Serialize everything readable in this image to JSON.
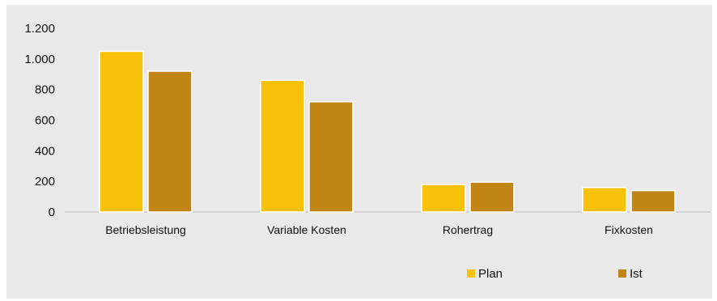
{
  "chart_data": {
    "type": "bar",
    "categories": [
      "Betriebsleistung",
      "Variable Kosten",
      "Rohertrag",
      "Fixkosten"
    ],
    "series": [
      {
        "name": "Plan",
        "values": [
          1050,
          860,
          180,
          160
        ]
      },
      {
        "name": "Ist",
        "values": [
          920,
          720,
          195,
          140
        ]
      }
    ],
    "title": "",
    "xlabel": "",
    "ylabel": "",
    "ylim": [
      0,
      1200
    ],
    "yticks": [
      0,
      200,
      400,
      600,
      800,
      1000,
      1200
    ],
    "ytick_labels": [
      "0",
      "200",
      "400",
      "600",
      "800",
      "1.000",
      "1.200"
    ],
    "grid": false,
    "legend_position": "bottom-right"
  },
  "colors": {
    "plan": "#f8c10a",
    "ist": "#c08515",
    "panel_background": "#e9e9ea"
  }
}
